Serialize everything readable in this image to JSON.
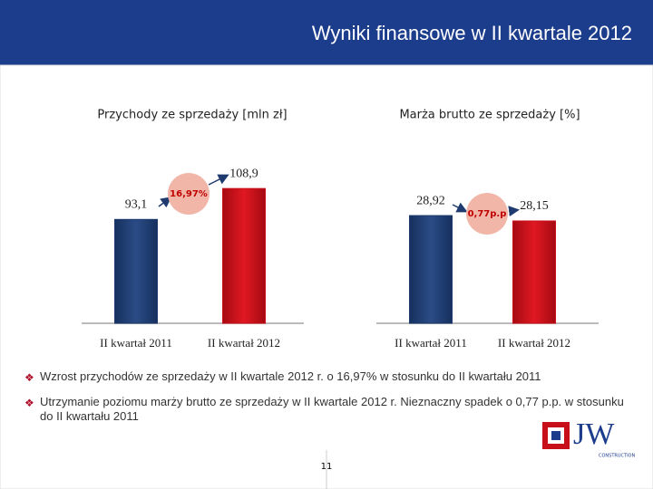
{
  "title": "Wyniki finansowe w II kwartale 2012",
  "chart_data": [
    {
      "type": "bar",
      "title": "Przychody ze sprzedaży [mln zł]",
      "categories": [
        "II kwartał 2011",
        "II kwartał 2012"
      ],
      "values": [
        93.1,
        108.9
      ],
      "value_labels": [
        "93,1",
        "108,9"
      ],
      "colors": [
        "#1f3a6e",
        "#c8101a"
      ],
      "ylim": [
        40,
        115
      ],
      "annotation": "16,97%"
    },
    {
      "type": "bar",
      "title": "Marża brutto ze sprzedaży [%]",
      "categories": [
        "II kwartał 2011",
        "II kwartał 2012"
      ],
      "values": [
        28.92,
        28.15
      ],
      "value_labels": [
        "28,92",
        "28,15"
      ],
      "colors": [
        "#1f3a6e",
        "#c8101a"
      ],
      "ylim": [
        13.5,
        34.5
      ],
      "annotation": "0,77p.p"
    }
  ],
  "bullets": [
    "Wzrost przychodów ze sprzedaży w II kwartale 2012 r. o 16,97% w stosunku do II kwartału 2011",
    "Utrzymanie poziomu marży brutto ze sprzedaży w II kwartale 2012 r. Nieznaczny spadek o 0,77 p.p. w stosunku do II kwartału 2011"
  ],
  "logo": {
    "text": "JW",
    "subtext": "CONSTRUCTION"
  },
  "page_number": "11"
}
